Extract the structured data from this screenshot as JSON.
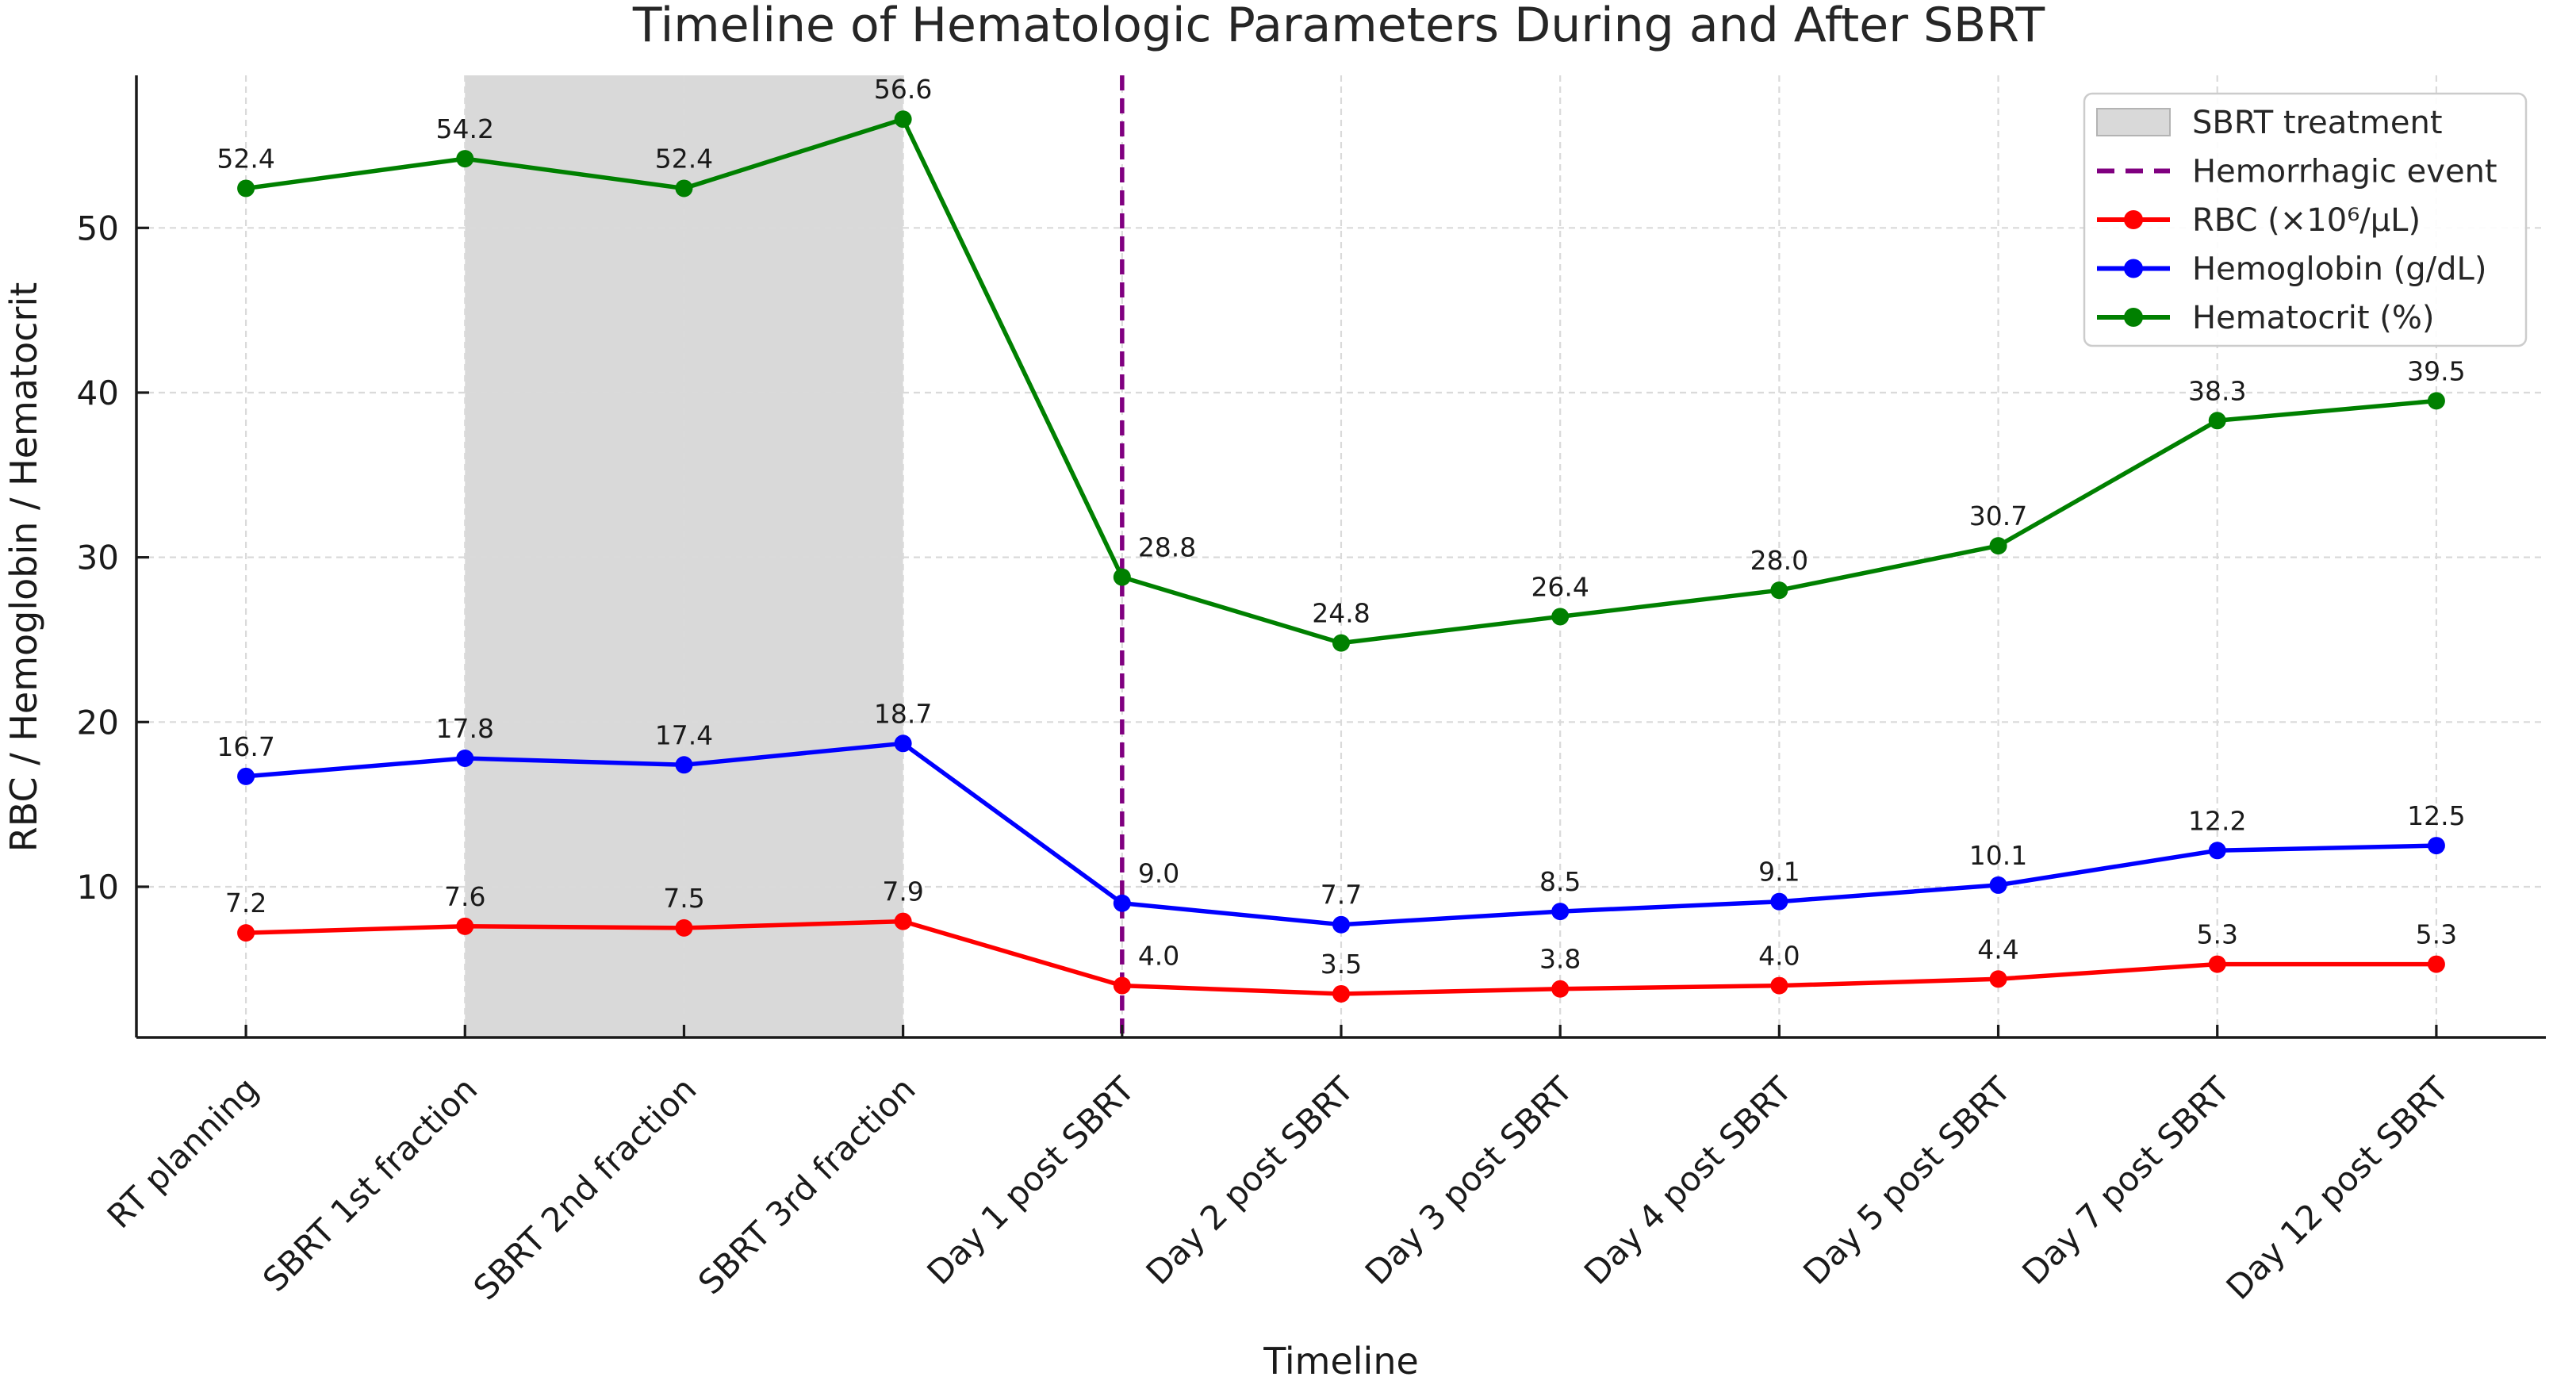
{
  "chart_data": {
    "type": "line",
    "title": "Timeline of Hematologic Parameters During and After SBRT",
    "xlabel": "Timeline",
    "ylabel": "RBC / Hemoglobin / Hematocrit",
    "categories": [
      "RT planning",
      "SBRT 1st fraction",
      "SBRT 2nd fraction",
      "SBRT 3rd fraction",
      "Day 1 post SBRT",
      "Day 2 post SBRT",
      "Day 3 post SBRT",
      "Day 4 post SBRT",
      "Day 5 post SBRT",
      "Day 7 post SBRT",
      "Day 12 post SBRT"
    ],
    "series": [
      {
        "name": "RBC (×10⁶/μL)",
        "color": "#ff0000",
        "values": [
          7.2,
          7.6,
          7.5,
          7.9,
          4.0,
          3.5,
          3.8,
          4.0,
          4.4,
          5.3,
          5.3
        ]
      },
      {
        "name": "Hemoglobin (g/dL)",
        "color": "#0000ff",
        "values": [
          16.7,
          17.8,
          17.4,
          18.7,
          9.0,
          7.7,
          8.5,
          9.1,
          10.1,
          12.2,
          12.5
        ]
      },
      {
        "name": "Hematocrit (%)",
        "color": "#008000",
        "values": [
          52.4,
          54.2,
          52.4,
          56.6,
          28.8,
          24.8,
          26.4,
          28.0,
          30.7,
          38.3,
          39.5
        ]
      }
    ],
    "annotations": {
      "band": {
        "label": "SBRT treatment",
        "from_category": "SBRT 1st fraction",
        "to_category": "SBRT 3rd fraction",
        "from_index": 1,
        "to_index": 3,
        "color": "#d9d9d9"
      },
      "vline": {
        "label": "Hemorrhagic event",
        "at_category": "Day 1 post SBRT",
        "at_index": 4,
        "color": "#800080",
        "style": "dashed"
      }
    },
    "yticks": [
      10,
      20,
      30,
      40,
      50
    ],
    "ylim": [
      0.85,
      59.26
    ],
    "grid": true,
    "grid_color": "#dadada",
    "axis_color": "#1a1a1a",
    "legend_position": "upper right",
    "legend_order": [
      "SBRT treatment",
      "Hemorrhagic event",
      "RBC (×10⁶/μL)",
      "Hemoglobin (g/dL)",
      "Hematocrit (%)"
    ]
  }
}
